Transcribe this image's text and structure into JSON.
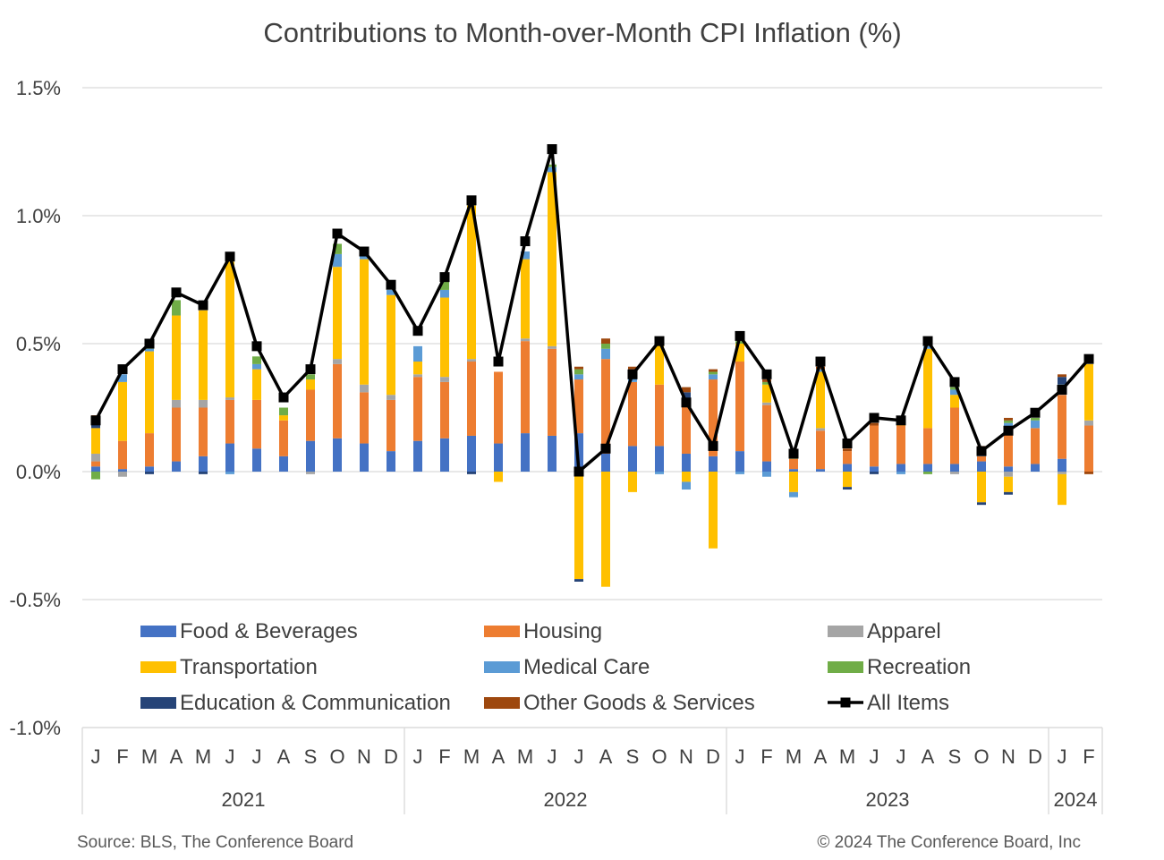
{
  "chart_data": {
    "type": "bar",
    "stacked": true,
    "title": "Contributions to Month-over-Month CPI Inflation (%)",
    "y_ticks": [
      "1.5%",
      "1.0%",
      "0.5%",
      "0.0%",
      "-0.5%",
      "-1.0%"
    ],
    "ylim": [
      -1.0,
      1.5
    ],
    "grid": true,
    "legend_position": "bottom (inside plot area)",
    "x_month_labels": [
      "J",
      "F",
      "M",
      "A",
      "M",
      "J",
      "J",
      "A",
      "S",
      "O",
      "N",
      "D",
      "J",
      "F",
      "M",
      "A",
      "M",
      "J",
      "J",
      "A",
      "S",
      "O",
      "N",
      "D",
      "J",
      "F",
      "M",
      "A",
      "M",
      "J",
      "J",
      "A",
      "S",
      "O",
      "N",
      "D",
      "J",
      "F"
    ],
    "x_year_groups": [
      {
        "year": "2021",
        "months": 12
      },
      {
        "year": "2022",
        "months": 12
      },
      {
        "year": "2023",
        "months": 12
      },
      {
        "year": "2024",
        "months": 2
      }
    ],
    "series": [
      {
        "name": "Food & Beverages",
        "color": "#4472C4",
        "values": [
          0.02,
          0.01,
          0.02,
          0.04,
          0.06,
          0.11,
          0.09,
          0.06,
          0.12,
          0.13,
          0.11,
          0.08,
          0.12,
          0.13,
          0.14,
          0.11,
          0.15,
          0.14,
          0.15,
          0.07,
          0.1,
          0.1,
          0.07,
          0.06,
          0.08,
          0.04,
          0.01,
          0.01,
          0.03,
          0.02,
          0.03,
          0.03,
          0.03,
          0.04,
          0.02,
          0.03,
          0.05,
          0.0
        ]
      },
      {
        "name": "Housing",
        "color": "#ED7D31",
        "values": [
          0.02,
          0.11,
          0.13,
          0.21,
          0.19,
          0.17,
          0.19,
          0.14,
          0.2,
          0.29,
          0.2,
          0.2,
          0.25,
          0.22,
          0.29,
          0.28,
          0.36,
          0.34,
          0.21,
          0.37,
          0.25,
          0.24,
          0.2,
          0.3,
          0.35,
          0.22,
          0.04,
          0.15,
          0.05,
          0.16,
          0.15,
          0.14,
          0.22,
          0.02,
          0.14,
          0.14,
          0.25,
          0.18
        ]
      },
      {
        "name": "Apparel",
        "color": "#A5A5A5",
        "values": [
          0.03,
          -0.02,
          0.0,
          0.03,
          0.03,
          0.01,
          0.0,
          0.0,
          -0.01,
          0.02,
          0.03,
          0.02,
          0.01,
          0.02,
          0.01,
          0.0,
          0.01,
          0.01,
          0.0,
          0.0,
          0.0,
          0.0,
          0.0,
          0.0,
          0.0,
          0.01,
          0.0,
          0.01,
          0.0,
          0.0,
          0.0,
          0.0,
          -0.01,
          0.0,
          -0.02,
          0.0,
          -0.01,
          0.02
        ]
      },
      {
        "name": "Transportation",
        "color": "#FFC000",
        "values": [
          0.1,
          0.23,
          0.32,
          0.33,
          0.35,
          0.53,
          0.12,
          0.02,
          0.04,
          0.36,
          0.49,
          0.39,
          0.05,
          0.31,
          0.6,
          -0.04,
          0.31,
          0.68,
          -0.42,
          -0.45,
          -0.08,
          0.16,
          -0.04,
          -0.3,
          0.07,
          0.07,
          -0.08,
          0.22,
          -0.06,
          0.0,
          0.02,
          0.31,
          0.05,
          -0.12,
          -0.06,
          0.0,
          -0.12,
          0.22
        ]
      },
      {
        "name": "Medical Care",
        "color": "#5B9BD5",
        "values": [
          0.0,
          0.03,
          0.01,
          0.0,
          0.0,
          -0.01,
          0.02,
          0.0,
          0.0,
          0.05,
          0.02,
          0.02,
          0.06,
          0.03,
          0.01,
          0.0,
          0.03,
          0.02,
          0.02,
          0.04,
          0.03,
          -0.01,
          -0.03,
          0.02,
          -0.01,
          -0.02,
          -0.02,
          0.01,
          0.0,
          0.0,
          -0.01,
          0.01,
          0.02,
          0.02,
          0.03,
          0.03,
          0.02,
          0.0
        ]
      },
      {
        "name": "Recreation",
        "color": "#70AD47",
        "values": [
          -0.03,
          0.0,
          0.01,
          0.06,
          0.0,
          0.0,
          0.03,
          0.03,
          0.02,
          0.04,
          0.0,
          0.0,
          0.0,
          0.04,
          0.0,
          0.0,
          0.0,
          0.01,
          0.02,
          0.02,
          0.01,
          0.01,
          0.01,
          0.01,
          0.01,
          0.01,
          0.01,
          0.0,
          0.0,
          0.0,
          0.0,
          -0.01,
          0.01,
          0.01,
          0.01,
          0.01,
          0.02,
          0.0
        ]
      },
      {
        "name": "Education & Communication",
        "color": "#264478",
        "values": [
          0.04,
          0.0,
          -0.01,
          0.0,
          -0.01,
          0.0,
          0.0,
          0.0,
          0.0,
          0.0,
          0.0,
          0.0,
          0.0,
          0.0,
          -0.01,
          0.0,
          0.0,
          0.0,
          -0.01,
          0.0,
          0.01,
          0.0,
          0.03,
          0.0,
          0.0,
          0.0,
          0.0,
          0.0,
          -0.01,
          -0.01,
          0.0,
          0.0,
          0.0,
          -0.01,
          -0.01,
          0.0,
          0.03,
          0.0
        ]
      },
      {
        "name": "Other Goods & Services",
        "color": "#9E480E",
        "values": [
          0.01,
          0.0,
          0.0,
          0.0,
          0.0,
          0.0,
          0.0,
          0.0,
          0.0,
          0.0,
          0.0,
          0.0,
          0.0,
          0.0,
          0.0,
          0.0,
          0.0,
          0.0,
          0.01,
          0.02,
          0.01,
          0.01,
          0.02,
          0.01,
          0.0,
          0.01,
          0.01,
          0.01,
          0.01,
          0.01,
          0.0,
          0.0,
          0.0,
          0.01,
          0.01,
          0.0,
          0.01,
          -0.01
        ]
      }
    ],
    "line": {
      "name": "All Items",
      "color": "#000000",
      "values": [
        0.2,
        0.4,
        0.5,
        0.7,
        0.65,
        0.84,
        0.49,
        0.29,
        0.4,
        0.93,
        0.86,
        0.73,
        0.55,
        0.76,
        1.06,
        0.43,
        0.9,
        1.26,
        0.0,
        0.09,
        0.38,
        0.51,
        0.27,
        0.1,
        0.53,
        0.38,
        0.07,
        0.43,
        0.11,
        0.21,
        0.2,
        0.51,
        0.35,
        0.08,
        0.16,
        0.23,
        0.32,
        0.44
      ]
    }
  },
  "footer": {
    "source": "Source: BLS, The Conference Board",
    "copyright": "© 2024 The Conference Board, Inc"
  }
}
